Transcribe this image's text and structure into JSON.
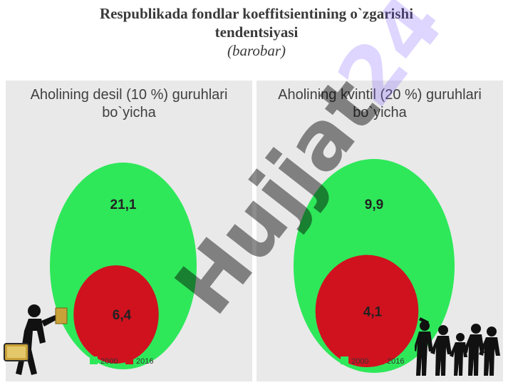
{
  "title": {
    "line1": "Respublikada fondlar koeffitsientining o`zgarishi",
    "line2": "tendentsiyasi",
    "unit": "(barobar)"
  },
  "colors": {
    "c2000": "#2ee85a",
    "c2016": "#d0121f",
    "panel_bg": "#e9e9e9"
  },
  "chart_data": [
    {
      "type": "nested-circle",
      "title_lines": [
        "Aholining desil (10 %) guruhlari",
        "bo`yicha"
      ],
      "series": [
        {
          "name": "2000",
          "value": 21.1,
          "label": "21,1"
        },
        {
          "name": "2016",
          "value": 6.4,
          "label": "6,4"
        }
      ],
      "legend": "bottom"
    },
    {
      "type": "nested-circle",
      "title_lines": [
        "Aholining kvintil (20 %) guruhlari",
        "bo`yicha"
      ],
      "series": [
        {
          "name": "2000",
          "value": 9.9,
          "label": "9,9"
        },
        {
          "name": "2016",
          "value": 4.1,
          "label": "4,1"
        }
      ],
      "legend": "bottom"
    }
  ],
  "watermark": {
    "text": "Hujjat",
    "accent": "24"
  }
}
